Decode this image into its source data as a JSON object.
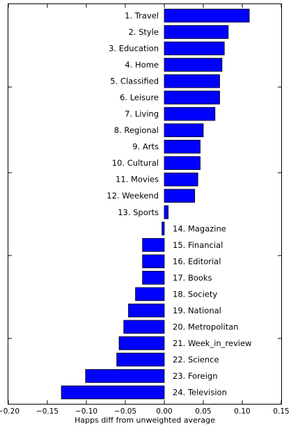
{
  "chart_data": {
    "type": "bar",
    "orientation": "horizontal",
    "bar_color": "#0000ff",
    "bar_edge_color": "#000000",
    "xlabel": "Happs diff from unweighted average",
    "ylabel": "",
    "xlim": [
      -0.2,
      0.15
    ],
    "xticks": [
      "−0.20",
      "−0.15",
      "−0.10",
      "−0.05",
      "0.00",
      "0.05",
      "0.10",
      "0.15"
    ],
    "xtick_values": [
      -0.2,
      -0.15,
      -0.1,
      -0.05,
      0.0,
      0.05,
      0.1,
      0.15
    ],
    "grid": false,
    "labels_at_bar_side": true,
    "categories": [
      "1. Travel",
      "2. Style",
      "3. Education",
      "4. Home",
      "5. Classified",
      "6. Leisure",
      "7. Living",
      "8. Regional",
      "9. Arts",
      "10. Cultural",
      "11. Movies",
      "12. Weekend",
      "13. Sports",
      "14. Magazine",
      "15. Financial",
      "16. Editorial",
      "17. Books",
      "18. Society",
      "19. National",
      "20. Metropolitan",
      "21. Week_in_review",
      "22. Science",
      "23. Foreign",
      "24. Television"
    ],
    "values": [
      0.109,
      0.082,
      0.077,
      0.074,
      0.071,
      0.071,
      0.065,
      0.05,
      0.046,
      0.046,
      0.043,
      0.039,
      0.005,
      -0.003,
      -0.028,
      -0.028,
      -0.028,
      -0.037,
      -0.046,
      -0.052,
      -0.058,
      -0.061,
      -0.101,
      -0.132
    ]
  }
}
